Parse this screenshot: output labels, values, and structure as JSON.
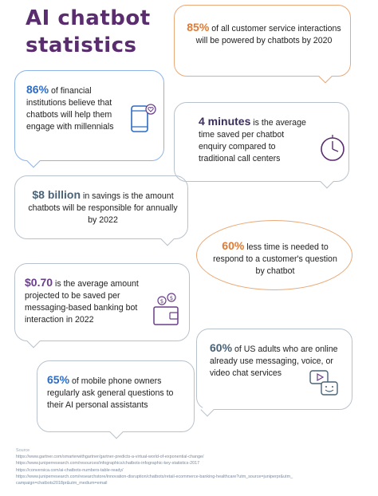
{
  "title": {
    "line1": "AI chatbot",
    "line2": "statistics"
  },
  "stats": [
    {
      "id": "s1",
      "big": "85%",
      "rest": " of all customer service interactions will be powered by chatbots by 2020",
      "color": "#e07a34"
    },
    {
      "id": "s2",
      "big": "86%",
      "rest": " of financial institutions believe that chatbots will help them engage with millennials",
      "color": "#2c6cc4"
    },
    {
      "id": "s3",
      "big": "4 minutes",
      "rest": " is the average time saved per chatbot enquiry compared to traditional call centers",
      "color": "#3b2f5a"
    },
    {
      "id": "s4",
      "big": "$8 billion",
      "rest": " in savings is the amount chatbots will be responsible for annually by 2022",
      "color": "#4a6275"
    },
    {
      "id": "s5",
      "big": "60%",
      "rest": " less time is needed to respond to a customer's question by chatbot",
      "color": "#e07a34"
    },
    {
      "id": "s6",
      "big": "$0.70",
      "rest": " is the average amount projected to be saved per messaging-based banking bot interaction in 2022",
      "color": "#6a3f8a"
    },
    {
      "id": "s7",
      "big": "60%",
      "rest": " of US adults who are online already use messaging, voice, or video chat services",
      "color": "#4a6275"
    },
    {
      "id": "s8",
      "big": "65%",
      "rest": " of mobile phone owners regularly ask general questions to their AI personal assistants",
      "color": "#2c6cc4"
    }
  ],
  "icons": {
    "phone": "phone-heart-icon",
    "clock": "clock-icon",
    "wallet": "wallet-dollar-icon",
    "video": "video-chat-icon"
  },
  "sources": {
    "label": "Source",
    "lines": [
      "https://www.gartner.com/smarterwithgartner/gartner-predicts-a-virtual-world-of-exponential-change/",
      "https://www.juniperresearch.com/resources/infographics/chatbots-infographic-key-statistics-2017",
      "https://conversica.com/ai-chatbots-numbers-table-ready/",
      "https://www.juniperresearch.com/researchstore/innovation-disruption/chatbots/retail-ecommerce-banking-healthcare?utm_source=juniperpr&utm_",
      "campaign=chatbots2018pr&utm_medium=email"
    ]
  }
}
